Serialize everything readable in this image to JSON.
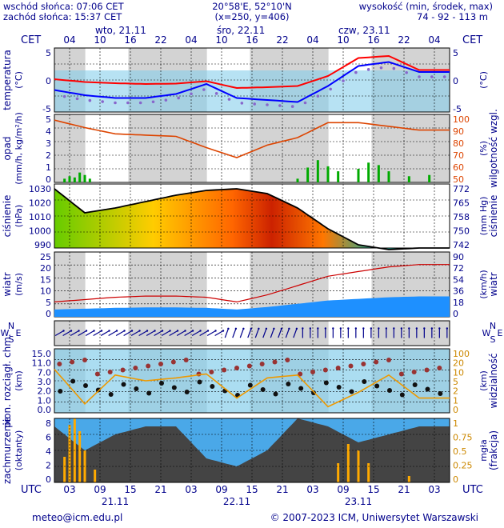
{
  "header": {
    "sunrise": "wschód słońca: 07:06 CET",
    "sunset": "zachód słońca: 15:37 CET",
    "coords": "20°58'E, 52°10'N",
    "grid": "(x=250, y=406)",
    "height_title": "wysokość (min, środek, max)",
    "height_values": "74 - 92 - 113 m"
  },
  "axes": {
    "cet_label": "CET",
    "utc_label": "UTC",
    "cet_hours": [
      "04",
      "10",
      "16",
      "22",
      "04",
      "10",
      "16",
      "22",
      "04",
      "10",
      "16",
      "22",
      "04"
    ],
    "utc_hours": [
      "03",
      "09",
      "15",
      "21",
      "03",
      "09",
      "15",
      "21",
      "03",
      "09",
      "15",
      "21",
      "03"
    ],
    "days_top": [
      "wto, 21.11",
      "śro, 22.11",
      "czw, 23.11"
    ],
    "days_bottom": [
      "21.11",
      "22.11",
      "23.11"
    ]
  },
  "panels": {
    "temperature": {
      "left_label": "temperatura",
      "left_unit": "(°C)",
      "right_unit": "(°C)",
      "ticks": [
        "5",
        "0",
        "-5"
      ]
    },
    "precip": {
      "left_label": "opad",
      "left_unit": "(mm/h, kg/m²/h)",
      "right_label": "wilgotność wzgl.",
      "right_unit": "(%)",
      "ticks_left": [
        "5",
        "4",
        "3",
        "2",
        "1",
        "0"
      ],
      "ticks_right": [
        "100",
        "90",
        "80",
        "70",
        "60",
        "50"
      ]
    },
    "pressure": {
      "left_label": "ciśnienie",
      "left_unit": "(hPa)",
      "right_label": "ciśnienie",
      "right_unit": "(mm Hg)",
      "ticks_left": [
        "1030",
        "1020",
        "1010",
        "1000",
        "990"
      ],
      "ticks_right": [
        "772",
        "765",
        "758",
        "750",
        "742"
      ]
    },
    "wind": {
      "left_label": "wiatr",
      "left_unit": "(m/s)",
      "right_label": "wiatr",
      "right_unit": "(km/h)",
      "ticks_left": [
        "25",
        "20",
        "15",
        "10",
        "5",
        "0"
      ],
      "ticks_right": [
        "90",
        "72",
        "54",
        "36",
        "18",
        "0"
      ]
    },
    "direction": {
      "n": "N",
      "s": "S",
      "w": "W",
      "e": "E"
    },
    "cloud_base": {
      "left_label": "pion. rozciągł. chm.",
      "left_unit": "(km)",
      "right_label": "widzialność",
      "right_unit": "(km)",
      "ticks_left": [
        "15.0",
        "11.0",
        "7.0",
        "3.0",
        "2.0",
        "1.0",
        "0.0"
      ],
      "ticks_right": [
        "100",
        "20",
        "10",
        "5",
        "2",
        "1",
        "0"
      ]
    },
    "cloud_cover": {
      "left_label": "zachmurzenie",
      "left_unit": "(oktanty)",
      "right_label": "(frakcja)",
      "right_unit": "mgła",
      "ticks_left": [
        "8",
        "6",
        "4",
        "2",
        "0"
      ],
      "ticks_right": [
        "1",
        "0.75",
        "0.5",
        "0.25",
        "0"
      ]
    }
  },
  "footer": {
    "email": "meteo@icm.edu.pl",
    "copyright": "© 2007-2023 ICM, Uniwersytet Warszawski"
  },
  "colors": {
    "night_shade": "#d3d3d3",
    "panel_bg": "#87ceeb",
    "temp_max": "#ff0000",
    "temp_min": "#0000ff",
    "humidity": "#dd4400",
    "precip_bar": "#00aa00",
    "fog_bar": "#ffaa00"
  },
  "chart_data": {
    "type": "line",
    "x_hours_utc": [
      0,
      6,
      12,
      18,
      24,
      30,
      36,
      42,
      48,
      54,
      60,
      66,
      72
    ],
    "series": [
      {
        "values": [
          0.2,
          -0.5,
          -0.8,
          -1.0,
          -0.9,
          -0.3,
          -2.0,
          -1.8,
          -1.5,
          1.0,
          5.5,
          6.0,
          2.5
        ]
      },
      {
        "values": [
          -2.5,
          -3.8,
          -4.5,
          -4.5,
          -3.5,
          -1.0,
          -4.5,
          -5.0,
          -5.5,
          -1.5,
          3.5,
          4.5,
          2.0
        ]
      },
      {
        "values": [
          1030,
          1015,
          1018,
          1022,
          1026,
          1029,
          1030,
          1027,
          1018,
          1005,
          995,
          992,
          993
        ]
      },
      {
        "values": [
          5,
          6,
          7,
          7.5,
          7.5,
          7,
          5,
          8,
          12,
          16,
          18,
          20,
          21
        ]
      },
      {
        "values": [
          98,
          92,
          87,
          86,
          85,
          76,
          68,
          78,
          84,
          96,
          96,
          93,
          90
        ]
      }
    ]
  }
}
